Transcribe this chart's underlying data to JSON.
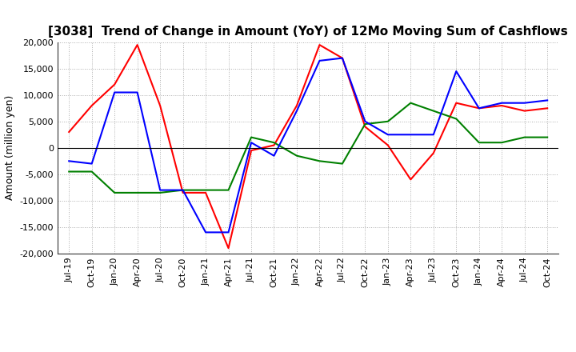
{
  "title": "[3038]  Trend of Change in Amount (YoY) of 12Mo Moving Sum of Cashflows",
  "ylabel": "Amount (million yen)",
  "xlabels": [
    "Jul-19",
    "Oct-19",
    "Jan-20",
    "Apr-20",
    "Jul-20",
    "Oct-20",
    "Jan-21",
    "Apr-21",
    "Jul-21",
    "Oct-21",
    "Jan-22",
    "Apr-22",
    "Jul-22",
    "Oct-22",
    "Jan-23",
    "Apr-23",
    "Jul-23",
    "Oct-23",
    "Jan-24",
    "Apr-24",
    "Jul-24",
    "Oct-24"
  ],
  "operating": [
    3000,
    8000,
    12000,
    19500,
    8000,
    -8500,
    -8500,
    -19000,
    -500,
    500,
    8000,
    19500,
    17000,
    4000,
    500,
    -6000,
    -1000,
    8500,
    7500,
    8000,
    7000,
    7500
  ],
  "investing": [
    -4500,
    -4500,
    -8500,
    -8500,
    -8500,
    -8000,
    -8000,
    -8000,
    2000,
    1000,
    -1500,
    -2500,
    -3000,
    4500,
    5000,
    8500,
    7000,
    5500,
    1000,
    1000,
    2000,
    2000
  ],
  "free": [
    -2500,
    -3000,
    10500,
    10500,
    -8000,
    -8000,
    -16000,
    -16000,
    1000,
    -1500,
    7000,
    16500,
    17000,
    5000,
    2500,
    2500,
    2500,
    14500,
    7500,
    8500,
    8500,
    9000
  ],
  "ylim": [
    -20000,
    20000
  ],
  "yticks": [
    -20000,
    -15000,
    -10000,
    -5000,
    0,
    5000,
    10000,
    15000,
    20000
  ],
  "operating_color": "#ff0000",
  "investing_color": "#008000",
  "free_color": "#0000ff",
  "bg_color": "#ffffff",
  "grid_color": "#999999",
  "title_fontsize": 11,
  "legend_fontsize": 9,
  "ylabel_fontsize": 9,
  "tick_fontsize": 8
}
